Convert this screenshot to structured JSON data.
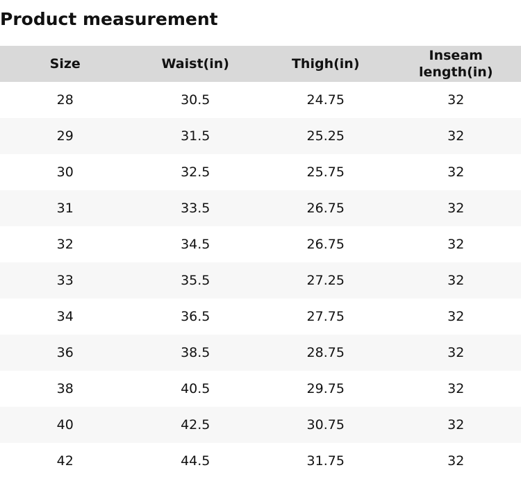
{
  "header": {
    "title": "Product measurement"
  },
  "table": {
    "columns": [
      "Size",
      "Waist(in)",
      "Thigh(in)",
      "Inseam length(in)"
    ],
    "rows": [
      [
        28,
        30.5,
        24.75,
        32
      ],
      [
        29,
        31.5,
        25.25,
        32
      ],
      [
        30,
        32.5,
        25.75,
        32
      ],
      [
        31,
        33.5,
        26.75,
        32
      ],
      [
        32,
        34.5,
        26.75,
        32
      ],
      [
        33,
        35.5,
        27.25,
        32
      ],
      [
        34,
        36.5,
        27.75,
        32
      ],
      [
        36,
        38.5,
        28.75,
        32
      ],
      [
        38,
        40.5,
        29.75,
        32
      ],
      [
        40,
        42.5,
        30.75,
        32
      ],
      [
        42,
        44.5,
        31.75,
        32
      ]
    ]
  }
}
